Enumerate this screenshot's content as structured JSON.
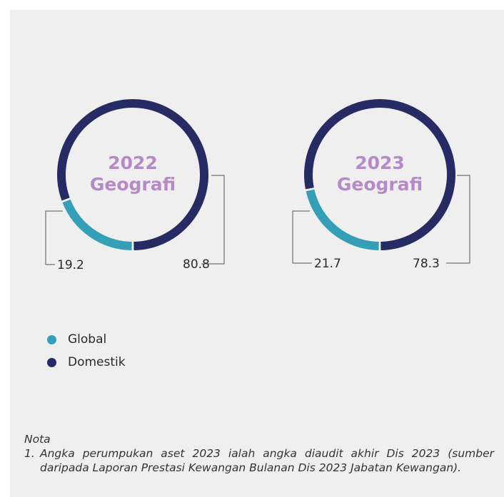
{
  "chart_data": [
    {
      "type": "pie",
      "title": "2022\nGeografi",
      "slices": [
        {
          "label": "Global",
          "value": 19.2,
          "value_label": "19.2"
        },
        {
          "label": "Domestik",
          "value": 80.8,
          "value_label": "80.8"
        }
      ]
    },
    {
      "type": "pie",
      "title": "2023\nGeografi",
      "slices": [
        {
          "label": "Global",
          "value": 21.7,
          "value_label": "21.7"
        },
        {
          "label": "Domestik",
          "value": 78.3,
          "value_label": "78.3"
        }
      ]
    }
  ],
  "legend": [
    {
      "label": "Global",
      "color": "#369fb8"
    },
    {
      "label": "Domestik",
      "color": "#262b63"
    }
  ],
  "colors": {
    "Global": "#369fb8",
    "Domestik": "#262b63",
    "title": "#b58bc6"
  },
  "note": {
    "heading": "Nota",
    "items": [
      {
        "num": "1.",
        "text": "Angka perumpukan aset 2023 ialah angka diaudit akhir Dis 2023 (sumber daripada Laporan Prestasi Kewangan Bulanan Dis 2023 Jabatan Kewangan)."
      }
    ]
  }
}
